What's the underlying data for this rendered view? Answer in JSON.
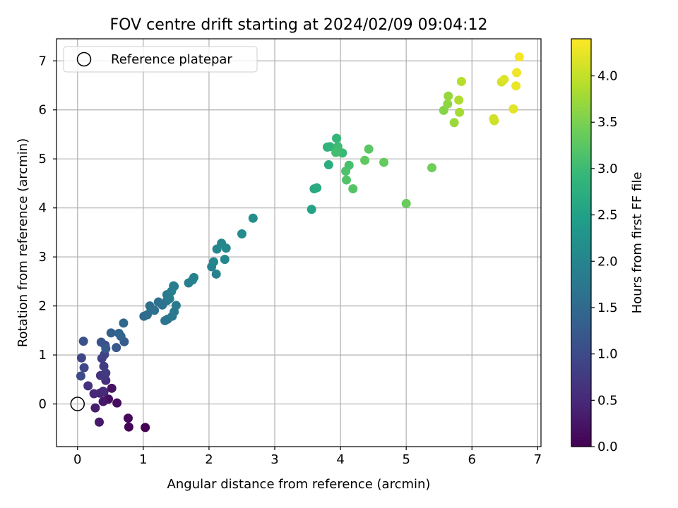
{
  "chart_data": {
    "type": "scatter",
    "title": "FOV centre drift starting at 2024/02/09 09:04:12",
    "xlabel": "Angular distance from reference (arcmin)",
    "ylabel": "Rotation from reference (arcmin)",
    "xlim": [
      -0.32,
      7.05
    ],
    "ylim": [
      -0.87,
      7.45
    ],
    "xticks": [
      0,
      1,
      2,
      3,
      4,
      5,
      6,
      7
    ],
    "yticks": [
      0,
      1,
      2,
      3,
      4,
      5,
      6,
      7
    ],
    "grid": true,
    "legend": {
      "location": "upper-left",
      "entries": [
        "Reference platepar"
      ]
    },
    "reference_point": {
      "x": 0,
      "y": 0,
      "label": "Reference platepar"
    },
    "colorbar": {
      "label": "Hours from first FF file",
      "colormap": "viridis",
      "range": [
        0,
        4.4
      ],
      "ticks": [
        "0.0",
        "0.5",
        "1.0",
        "1.5",
        "2.0",
        "2.5",
        "3.0",
        "3.5",
        "4.0"
      ]
    },
    "series": [
      {
        "x": [
          1.03,
          0.78,
          0.77,
          0.6,
          0.47,
          0.52,
          0.39,
          0.33,
          0.27,
          0.4,
          0.34,
          0.25,
          0.39,
          0.43,
          0.16,
          0.35,
          0.41,
          0.43,
          0.4,
          0.37,
          0.41,
          0.06,
          0.1,
          0.05,
          0.42,
          0.09,
          0.36,
          0.59,
          0.43,
          0.71,
          0.51,
          0.66,
          0.63,
          0.7,
          1.01,
          1.06,
          1.12,
          1.1,
          1.17,
          1.23,
          1.29,
          1.36,
          1.33,
          1.37,
          1.36,
          1.44,
          1.47,
          1.5,
          1.47,
          1.4,
          1.43,
          1.46,
          1.69,
          1.75,
          1.77,
          2.04,
          2.11,
          2.07,
          2.12,
          2.19,
          2.26,
          2.24,
          2.5,
          2.67,
          3.56,
          3.6,
          3.64,
          3.82,
          3.8,
          3.84,
          3.94,
          4.03,
          3.96,
          3.93,
          4.13,
          4.08,
          4.09,
          4.19,
          4.43,
          4.37,
          4.66,
          5.0,
          5.39,
          5.57,
          5.63,
          5.64,
          5.73,
          5.81,
          5.8,
          5.84,
          6.34,
          6.33,
          6.45,
          6.49,
          6.63,
          6.67,
          6.68,
          6.72
        ],
        "y": [
          -0.48,
          -0.47,
          -0.29,
          0.02,
          0.1,
          0.32,
          0.05,
          -0.37,
          -0.08,
          0.24,
          0.22,
          0.21,
          0.26,
          0.48,
          0.37,
          0.58,
          0.56,
          0.63,
          0.77,
          0.93,
          1.01,
          0.94,
          0.74,
          0.57,
          1.2,
          1.28,
          1.26,
          1.15,
          1.13,
          1.27,
          1.45,
          1.38,
          1.44,
          1.65,
          1.79,
          1.82,
          1.93,
          2.0,
          1.91,
          2.08,
          2.02,
          2.11,
          1.7,
          1.73,
          2.23,
          1.79,
          1.88,
          2.01,
          2.4,
          2.15,
          2.3,
          2.41,
          2.47,
          2.53,
          2.58,
          2.8,
          2.65,
          2.9,
          3.16,
          3.28,
          3.18,
          2.95,
          3.47,
          3.79,
          3.97,
          4.39,
          4.41,
          4.88,
          5.24,
          5.25,
          5.42,
          5.12,
          5.25,
          5.13,
          4.87,
          4.75,
          4.57,
          4.39,
          5.2,
          4.97,
          4.93,
          4.09,
          4.82,
          5.99,
          6.12,
          6.28,
          5.74,
          5.95,
          6.2,
          6.58,
          5.78,
          5.82,
          6.57,
          6.62,
          6.02,
          6.49,
          6.76,
          7.08
        ],
        "hours": [
          0.0,
          0.04,
          0.09,
          0.13,
          0.18,
          0.22,
          0.27,
          0.31,
          0.35,
          0.4,
          0.44,
          0.49,
          0.53,
          0.58,
          0.62,
          0.66,
          0.71,
          0.75,
          0.8,
          0.84,
          0.89,
          0.93,
          0.97,
          1.02,
          1.06,
          1.11,
          1.15,
          1.2,
          1.24,
          1.28,
          1.33,
          1.37,
          1.42,
          1.46,
          1.5,
          1.55,
          1.58,
          1.6,
          1.62,
          1.64,
          1.66,
          1.68,
          1.7,
          1.72,
          1.74,
          1.76,
          1.78,
          1.8,
          1.82,
          1.84,
          1.86,
          1.88,
          1.9,
          1.92,
          1.94,
          1.96,
          1.98,
          2.0,
          2.02,
          2.04,
          2.06,
          2.08,
          2.1,
          2.14,
          2.55,
          2.62,
          2.68,
          2.74,
          2.8,
          2.86,
          2.92,
          2.98,
          3.02,
          3.06,
          3.1,
          3.14,
          3.18,
          3.22,
          3.26,
          3.3,
          3.34,
          3.38,
          3.42,
          3.58,
          3.64,
          3.7,
          3.74,
          3.8,
          3.86,
          3.92,
          4.05,
          4.09,
          4.13,
          4.18,
          4.22,
          4.27,
          4.31,
          4.35
        ]
      }
    ]
  }
}
